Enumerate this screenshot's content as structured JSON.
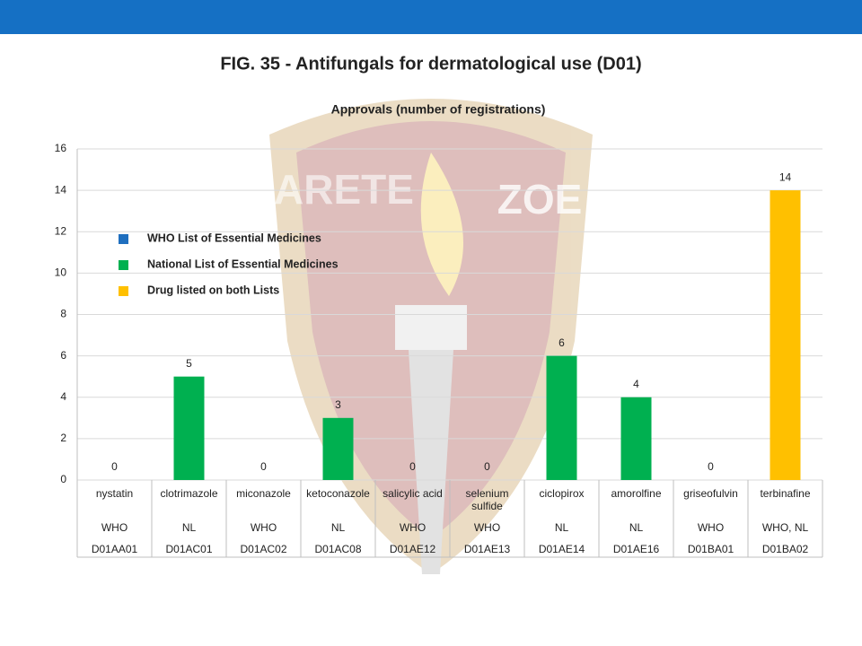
{
  "chart_data": {
    "type": "bar",
    "title": "FIG. 35 - Antifungals for dermatological use (D01)",
    "subtitle": "Approvals (number of registrations)",
    "watermark": [
      "ARETE",
      "ZOE"
    ],
    "categories": [
      "nystatin",
      "clotrimazole",
      "miconazole",
      "ketoconazole",
      "salicylic acid",
      "selenium sulfide",
      "ciclopirox",
      "amorolfine",
      "griseofulvin",
      "terbinafine"
    ],
    "lists": [
      "WHO",
      "NL",
      "WHO",
      "NL",
      "WHO",
      "WHO",
      "NL",
      "NL",
      "WHO",
      "WHO, NL"
    ],
    "codes": [
      "D01AA01",
      "D01AC01",
      "D01AC02",
      "D01AC08",
      "D01AE12",
      "D01AE13",
      "D01AE14",
      "D01AE16",
      "D01BA01",
      "D01BA02"
    ],
    "series": [
      {
        "name": "WHO List of Essential Medicines",
        "color": "#1f6fbf",
        "values": [
          0,
          null,
          0,
          null,
          0,
          0,
          null,
          null,
          0,
          null
        ]
      },
      {
        "name": "National List of Essential Medicines",
        "color": "#00b050",
        "values": [
          null,
          5,
          null,
          3,
          null,
          null,
          6,
          4,
          null,
          null
        ]
      },
      {
        "name": "Drug listed on both Lists",
        "color": "#ffc000",
        "values": [
          null,
          null,
          null,
          null,
          null,
          null,
          null,
          null,
          null,
          14
        ]
      }
    ],
    "ylim": [
      0,
      16
    ],
    "yticks": [
      0,
      2,
      4,
      6,
      8,
      10,
      12,
      14,
      16
    ],
    "grid": true
  }
}
